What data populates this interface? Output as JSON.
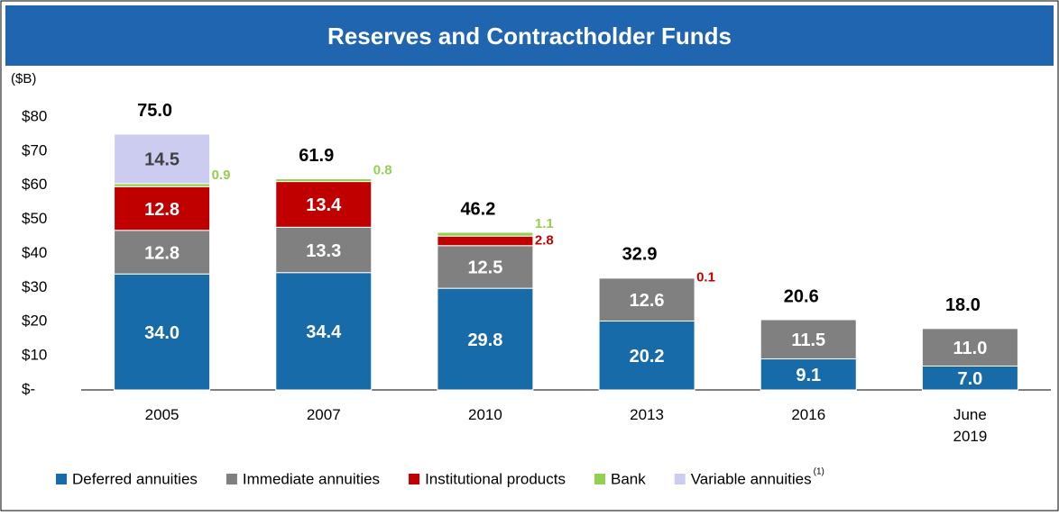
{
  "chart_data": {
    "type": "stacked_bar",
    "title": "Reserves and Contractholder Funds",
    "y_unit": "($B)",
    "categories": [
      "2005",
      "2007",
      "2010",
      "2013",
      "2016",
      "June 2019"
    ],
    "series": [
      {
        "name": "Deferred annuities",
        "color": "#176ba8",
        "values": [
          34.0,
          34.4,
          29.8,
          20.2,
          9.1,
          7.0
        ],
        "value_labels": [
          "34.0",
          "34.4",
          "29.8",
          "20.2",
          "9.1",
          "7.0"
        ]
      },
      {
        "name": "Immediate annuities",
        "color": "#808080",
        "values": [
          12.8,
          13.3,
          12.5,
          12.6,
          11.5,
          11.0
        ],
        "value_labels": [
          "12.8",
          "13.3",
          "12.5",
          "12.6",
          "11.5",
          "11.0"
        ]
      },
      {
        "name": "Institutional products",
        "color": "#c00000",
        "values": [
          12.8,
          13.4,
          2.8,
          0.1,
          null,
          null
        ],
        "value_labels": [
          "12.8",
          "13.4",
          "2.8",
          "0.1",
          null,
          null
        ]
      },
      {
        "name": "Bank",
        "color": "#92d050",
        "values": [
          0.9,
          0.8,
          1.1,
          null,
          null,
          null
        ],
        "value_labels": [
          "0.9",
          "0.8",
          "1.1",
          null,
          null,
          null
        ]
      },
      {
        "name": "Variable annuities",
        "color": "#ccccf0",
        "values": [
          14.5,
          null,
          null,
          null,
          null,
          null
        ],
        "value_labels": [
          "14.5",
          null,
          null,
          null,
          null,
          null
        ]
      }
    ],
    "legend_note": "(1)",
    "totals": [
      75.0,
      61.9,
      46.2,
      32.9,
      20.6,
      18.0
    ],
    "total_labels": [
      "75.0",
      "61.9",
      "46.2",
      "32.9",
      "20.6",
      "18.0"
    ],
    "ylim": [
      0,
      80
    ],
    "yticks": [
      {
        "value": 0,
        "label": "$-"
      },
      {
        "value": 10,
        "label": "$10"
      },
      {
        "value": 20,
        "label": "$20"
      },
      {
        "value": 30,
        "label": "$30"
      },
      {
        "value": 40,
        "label": "$40"
      },
      {
        "value": 50,
        "label": "$50"
      },
      {
        "value": 60,
        "label": "$60"
      },
      {
        "value": 70,
        "label": "$70"
      },
      {
        "value": 80,
        "label": "$80"
      }
    ]
  }
}
